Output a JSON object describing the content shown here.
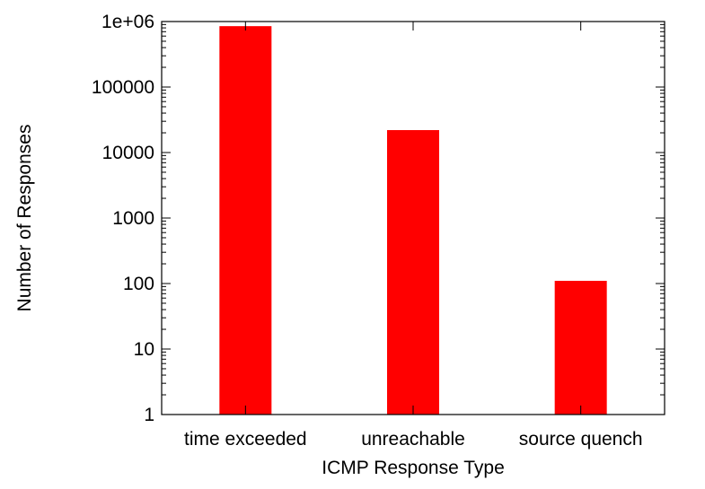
{
  "chart_data": {
    "type": "bar",
    "title": "",
    "xlabel": "ICMP Response Type",
    "ylabel": "Number of Responses",
    "yscale": "log",
    "ylim": [
      1,
      1000000
    ],
    "yticks": [
      {
        "value": 1,
        "label": "1"
      },
      {
        "value": 10,
        "label": "10"
      },
      {
        "value": 100,
        "label": "100"
      },
      {
        "value": 1000,
        "label": "1000"
      },
      {
        "value": 10000,
        "label": "10000"
      },
      {
        "value": 100000,
        "label": "100000"
      },
      {
        "value": 1000000,
        "label": "1e+06"
      }
    ],
    "categories": [
      "time exceeded",
      "unreachable",
      "source quench"
    ],
    "values": [
      850000,
      22000,
      110
    ],
    "grid": false,
    "legend": "none",
    "bar_color": "#ff0000",
    "axis_color": "#000000"
  }
}
